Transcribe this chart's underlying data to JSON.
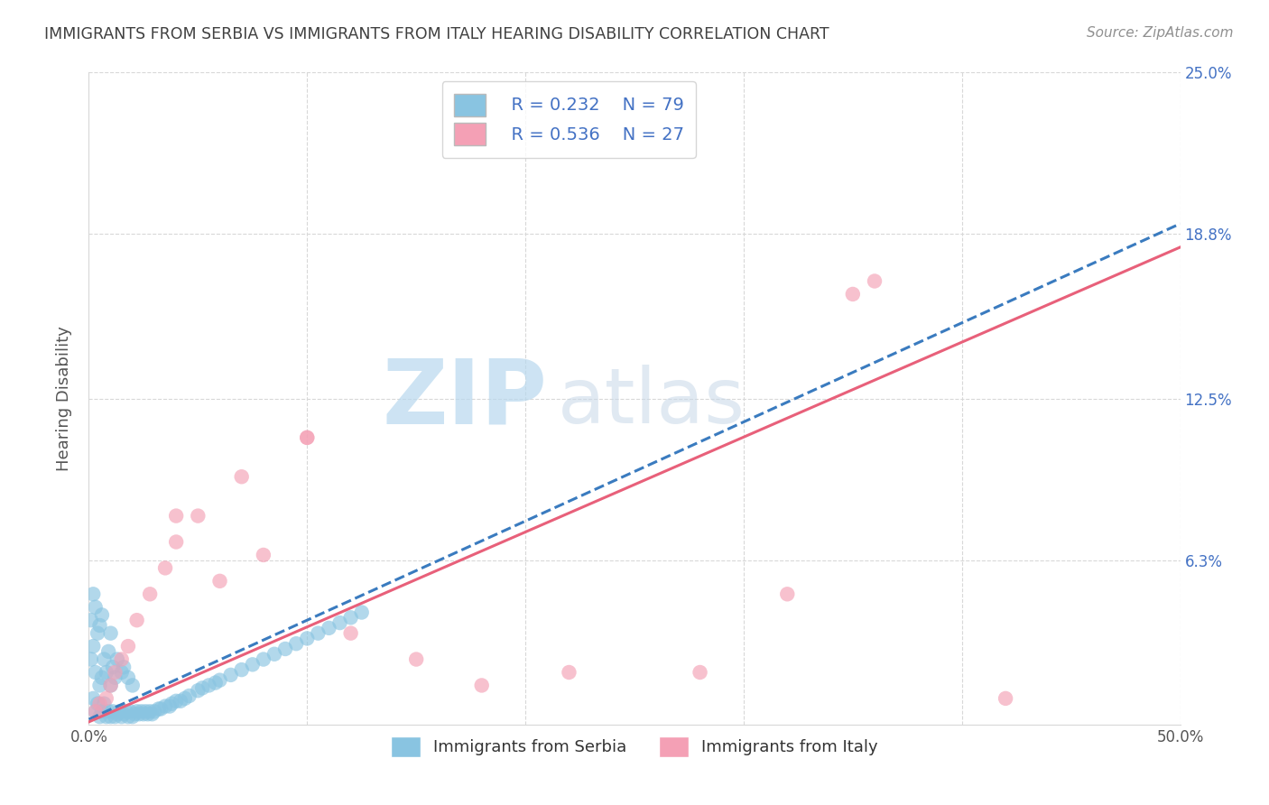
{
  "title": "IMMIGRANTS FROM SERBIA VS IMMIGRANTS FROM ITALY HEARING DISABILITY CORRELATION CHART",
  "source": "Source: ZipAtlas.com",
  "ylabel": "Hearing Disability",
  "serbia_color": "#89c4e1",
  "italy_color": "#f4a0b5",
  "serbia_line_color": "#3a7bbf",
  "italy_line_color": "#e8607a",
  "watermark_color": "#cce5f5",
  "serbia_R": 0.232,
  "serbia_N": 79,
  "italy_R": 0.536,
  "italy_N": 27,
  "legend_label_serbia": "Immigrants from Serbia",
  "legend_label_italy": "Immigrants from Italy",
  "watermark_zip": "ZIP",
  "watermark_atlas": "atlas",
  "xlim": [
    0.0,
    0.5
  ],
  "ylim": [
    0.0,
    0.25
  ],
  "x_tick_positions": [
    0.0,
    0.1,
    0.2,
    0.3,
    0.4,
    0.5
  ],
  "x_tick_labels": [
    "0.0%",
    "",
    "",
    "",
    "",
    "50.0%"
  ],
  "y_tick_positions": [
    0.0,
    0.063,
    0.125,
    0.188,
    0.25
  ],
  "y_tick_labels": [
    "",
    "6.3%",
    "12.5%",
    "18.8%",
    "25.0%"
  ],
  "grid_color": "#d8d8d8",
  "title_color": "#404040",
  "source_color": "#909090",
  "axis_label_color": "#555555",
  "right_tick_color": "#4472c4",
  "legend_text_color": "#4472c4",
  "serbia_line_start_y": 0.002,
  "serbia_line_end_y": 0.192,
  "italy_line_start_y": 0.001,
  "italy_line_end_y": 0.183,
  "italy_scatter_x": [
    0.003,
    0.005,
    0.008,
    0.01,
    0.012,
    0.015,
    0.018,
    0.022,
    0.028,
    0.035,
    0.04,
    0.05,
    0.06,
    0.08,
    0.1,
    0.12,
    0.15,
    0.18,
    0.22,
    0.28,
    0.32,
    0.36,
    0.04,
    0.07,
    0.1,
    0.35,
    0.42
  ],
  "italy_scatter_y": [
    0.005,
    0.008,
    0.01,
    0.015,
    0.02,
    0.025,
    0.03,
    0.04,
    0.05,
    0.06,
    0.07,
    0.08,
    0.055,
    0.065,
    0.11,
    0.035,
    0.025,
    0.015,
    0.02,
    0.02,
    0.05,
    0.17,
    0.08,
    0.095,
    0.11,
    0.165,
    0.01
  ],
  "serbia_scatter_x": [
    0.001,
    0.001,
    0.002,
    0.002,
    0.002,
    0.003,
    0.003,
    0.003,
    0.004,
    0.004,
    0.005,
    0.005,
    0.005,
    0.006,
    0.006,
    0.006,
    0.007,
    0.007,
    0.008,
    0.008,
    0.009,
    0.009,
    0.01,
    0.01,
    0.01,
    0.011,
    0.011,
    0.012,
    0.012,
    0.013,
    0.013,
    0.014,
    0.015,
    0.015,
    0.016,
    0.016,
    0.017,
    0.018,
    0.018,
    0.019,
    0.02,
    0.02,
    0.021,
    0.022,
    0.023,
    0.024,
    0.025,
    0.026,
    0.027,
    0.028,
    0.029,
    0.03,
    0.032,
    0.033,
    0.035,
    0.037,
    0.038,
    0.04,
    0.042,
    0.044,
    0.046,
    0.05,
    0.052,
    0.055,
    0.058,
    0.06,
    0.065,
    0.07,
    0.075,
    0.08,
    0.085,
    0.09,
    0.095,
    0.1,
    0.105,
    0.11,
    0.115,
    0.12,
    0.125
  ],
  "serbia_scatter_y": [
    0.025,
    0.04,
    0.01,
    0.03,
    0.05,
    0.005,
    0.02,
    0.045,
    0.008,
    0.035,
    0.003,
    0.015,
    0.038,
    0.005,
    0.018,
    0.042,
    0.008,
    0.025,
    0.003,
    0.02,
    0.005,
    0.028,
    0.003,
    0.015,
    0.035,
    0.005,
    0.022,
    0.003,
    0.018,
    0.004,
    0.025,
    0.005,
    0.003,
    0.02,
    0.004,
    0.022,
    0.005,
    0.003,
    0.018,
    0.005,
    0.003,
    0.015,
    0.004,
    0.005,
    0.004,
    0.005,
    0.004,
    0.005,
    0.004,
    0.005,
    0.004,
    0.005,
    0.006,
    0.006,
    0.007,
    0.007,
    0.008,
    0.009,
    0.009,
    0.01,
    0.011,
    0.013,
    0.014,
    0.015,
    0.016,
    0.017,
    0.019,
    0.021,
    0.023,
    0.025,
    0.027,
    0.029,
    0.031,
    0.033,
    0.035,
    0.037,
    0.039,
    0.041,
    0.043
  ]
}
